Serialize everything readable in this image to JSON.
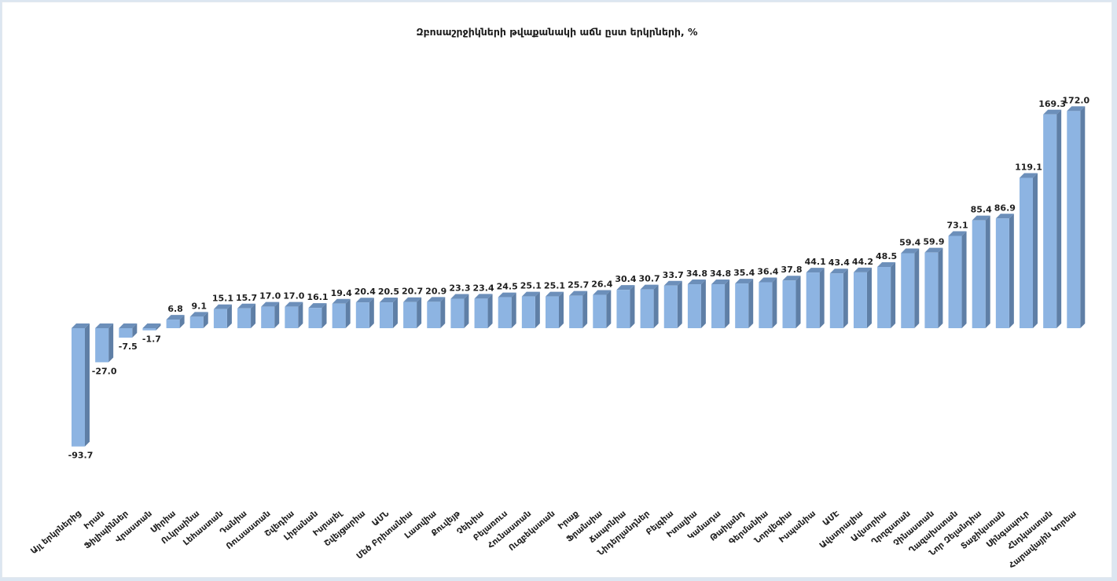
{
  "chart_data": {
    "type": "bar",
    "title": "Զբոսաշրջիկների թվաքանակի աճն ըստ երկրների, %",
    "xlabel": "",
    "ylabel": "",
    "ylim": [
      -100,
      180
    ],
    "grid": false,
    "legend": "none",
    "bar_color": "#8db4e2",
    "bar_side_color": "#5f7fa6",
    "bar_top_color": "#6c8fba",
    "categories": [
      "Այլ երկրներից",
      "Իրան",
      "Ֆիլիպիններ",
      "Վրաստան",
      "Սիրիա",
      "Ուկրաինա",
      "Լեհաստան",
      "Դանիա",
      "Ռուսաստան",
      "Շվեդիա",
      "Լիբանան",
      "Իսրայել",
      "Շվեյցարիա",
      "ԱՄՆ",
      "Մեծ Բրիտանիա",
      "Լատվիա",
      "Քուվեյթ",
      "Չեխիա",
      "Բելառուս",
      "Հունաստան",
      "Ուզբեկստան",
      "Իրաք",
      "Ֆրանսիա",
      "Ճապոնիա",
      "Նիդերլանդներ",
      "Բելգիա",
      "Իտալիա",
      "Կանադա",
      "Թաիլանդ",
      "Գերմանիա",
      "Նորվեգիա",
      "Իսպանիա",
      "ԱՄԷ",
      "Ավստրալիա",
      "Ավստրիա",
      "Ղրղզստան",
      "Չինաստան",
      "Ղազախստան",
      "Նոր Զելանդիա",
      "Տաջիկստան",
      "Սինգապուր",
      "Հնդկաստան",
      "Հարավային Կորեա"
    ],
    "values": [
      -93.7,
      -27.0,
      -7.5,
      -1.7,
      6.8,
      9.1,
      15.1,
      15.7,
      17.0,
      17.0,
      16.1,
      19.4,
      20.4,
      20.5,
      20.7,
      20.9,
      23.3,
      23.4,
      24.5,
      25.1,
      25.1,
      25.7,
      26.4,
      30.4,
      30.7,
      33.7,
      34.8,
      34.8,
      35.4,
      36.4,
      37.8,
      44.1,
      43.4,
      44.2,
      48.5,
      59.4,
      59.9,
      73.1,
      85.4,
      86.9,
      119.1,
      169.3,
      172.0
    ],
    "value_labels": [
      "-93.7",
      "-27.0",
      "-7.5",
      "-1.7",
      "6.8",
      "9.1",
      "15.1",
      "15.7",
      "17.0",
      "17.0",
      "16.1",
      "19.4",
      "20.4",
      "20.5",
      "20.7",
      "20.9",
      "23.3",
      "23.4",
      "24.5",
      "25.1",
      "25.1",
      "25.7",
      "26.4",
      "30.4",
      "30.7",
      "33.7",
      "34.8",
      "34.8",
      "35.4",
      "36.4",
      "37.8",
      "44.1",
      "43.4",
      "44.2",
      "48.5",
      "59.4",
      "59.9",
      "73.1",
      "85.4",
      "86.9",
      "119.1",
      "169.3",
      "172.0"
    ]
  }
}
